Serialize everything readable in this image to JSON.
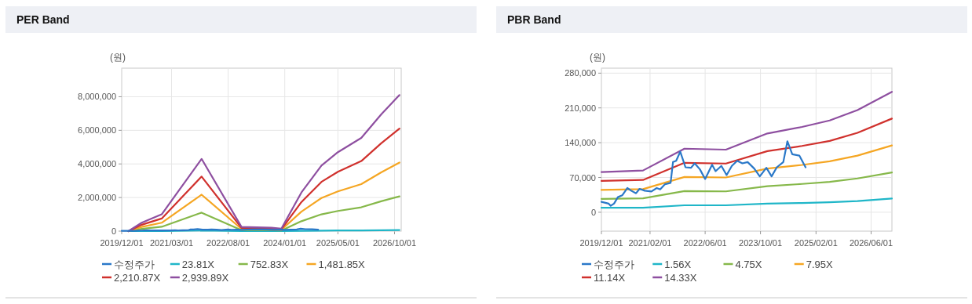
{
  "chart_data": [
    {
      "type": "line",
      "title": "PER Band",
      "ylabel": "(원)",
      "x": [
        "2020-02-01",
        "2020-06-01",
        "2020-12-01",
        "2021-12-01",
        "2022-12-01",
        "2023-09-01",
        "2023-12-01",
        "2024-06-01",
        "2024-12-01",
        "2025-05-01",
        "2025-12-01",
        "2026-06-01",
        "2026-11-15"
      ],
      "series": [
        {
          "name": "수정주가",
          "color": "#2a78c8",
          "x": [
            "2019-12-01",
            "2020-02-03",
            "2020-02-21",
            "2020-03-21",
            "2020-04-24",
            "2020-06-01",
            "2020-07-16",
            "2020-08-19",
            "2020-10-01",
            "2020-11-01",
            "2020-12-16",
            "2021-02-13",
            "2021-04-01",
            "2021-05-01",
            "2021-06-13",
            "2021-08-01",
            "2021-08-22",
            "2021-09-19",
            "2021-10-25",
            "2021-12-10",
            "2022-01-28",
            "2022-03-01",
            "2022-04-16",
            "2022-06-01",
            "2022-08-01",
            "2022-09-01",
            "2022-10-22",
            "2022-12-07",
            "2023-01-22",
            "2023-03-10",
            "2023-04-25",
            "2023-06-10",
            "2023-08-07",
            "2023-09-25",
            "2023-11-22",
            "2024-01-07",
            "2024-02-22",
            "2024-04-19",
            "2024-05-25",
            "2024-07-07",
            "2024-09-07",
            "2024-11-01"
          ],
          "values": [
            20900,
            17300,
            13000,
            17300,
            30400,
            34000,
            48700,
            43400,
            38200,
            47100,
            43400,
            41900,
            48700,
            46100,
            56500,
            59100,
            101000,
            103600,
            122000,
            90500,
            89500,
            98400,
            86400,
            67000,
            95800,
            82700,
            93200,
            74800,
            93200,
            103600,
            98400,
            101000,
            88000,
            72200,
            89500,
            72200,
            90500,
            101000,
            142900,
            116700,
            114100,
            90500
          ]
        },
        {
          "name": "23.81X",
          "color": "#1fb6c8",
          "values": [
            0,
            4000,
            8000,
            35000,
            2000,
            1600,
            1200,
            19000,
            32000,
            38000,
            45000,
            56000,
            65000
          ]
        },
        {
          "name": "752.83X",
          "color": "#86b84a",
          "values": [
            0,
            130000,
            260000,
            1100000,
            60000,
            50000,
            40000,
            590000,
            1000000,
            1200000,
            1420000,
            1780000,
            2070000
          ]
        },
        {
          "name": "1,481.85X",
          "color": "#f5a623",
          "values": [
            0,
            250000,
            500000,
            2170000,
            130000,
            100000,
            80000,
            1160000,
            1970000,
            2370000,
            2800000,
            3500000,
            4080000
          ]
        },
        {
          "name": "2,210.87X",
          "color": "#d0312d",
          "values": [
            0,
            380000,
            750000,
            3250000,
            190000,
            150000,
            110000,
            1730000,
            2930000,
            3530000,
            4170000,
            5230000,
            6100000
          ]
        },
        {
          "name": "2,939.89X",
          "color": "#8e4fa0",
          "values": [
            0,
            500000,
            1000000,
            4300000,
            250000,
            200000,
            150000,
            2300000,
            3900000,
            4700000,
            5550000,
            6950000,
            8100000
          ]
        }
      ],
      "xlim": [
        "2019-12-01",
        "2026-12-01"
      ],
      "xticks": [
        {
          "value": "2019-12-01",
          "label": "2019/12/01"
        },
        {
          "value": "2021-03-01",
          "label": "2021/03/01"
        },
        {
          "value": "2022-08-01",
          "label": "2022/08/01"
        },
        {
          "value": "2024-01-01",
          "label": "2024/01/01"
        },
        {
          "value": "2025-05-01",
          "label": "2025/05/01"
        },
        {
          "value": "2026-10-01",
          "label": "2026/10/01"
        }
      ],
      "ylim": [
        0,
        9700000
      ],
      "yticks": [
        0,
        {
          "value": 2000000,
          "label": "2,000,000"
        },
        {
          "value": 4000000,
          "label": "4,000,000"
        },
        {
          "value": 6000000,
          "label": "6,000,000"
        },
        {
          "value": 8000000,
          "label": "8,000,000"
        }
      ],
      "grid": true,
      "legend": "bottom"
    },
    {
      "type": "line",
      "title": "PBR Band",
      "ylabel": "(원)",
      "x": [
        "2019-12-01",
        "2020-12-01",
        "2021-12-01",
        "2022-12-01",
        "2023-12-01",
        "2024-10-01",
        "2025-06-01",
        "2026-02-01",
        "2026-12-01"
      ],
      "series": [
        {
          "name": "수정주가",
          "color": "#2a78c8",
          "x": [
            "2019-12-01",
            "2020-02-03",
            "2020-02-21",
            "2020-03-21",
            "2020-04-24",
            "2020-06-01",
            "2020-07-16",
            "2020-08-19",
            "2020-10-01",
            "2020-11-01",
            "2020-12-16",
            "2021-02-13",
            "2021-04-01",
            "2021-05-01",
            "2021-06-13",
            "2021-08-01",
            "2021-08-22",
            "2021-09-19",
            "2021-10-25",
            "2021-12-10",
            "2022-01-28",
            "2022-03-01",
            "2022-04-16",
            "2022-06-01",
            "2022-08-01",
            "2022-09-01",
            "2022-10-22",
            "2022-12-07",
            "2023-01-22",
            "2023-03-10",
            "2023-04-25",
            "2023-06-10",
            "2023-08-07",
            "2023-09-25",
            "2023-11-22",
            "2024-01-07",
            "2024-02-22",
            "2024-04-19",
            "2024-05-25",
            "2024-07-07",
            "2024-09-07",
            "2024-11-01"
          ],
          "values": [
            20900,
            17300,
            13000,
            17300,
            30400,
            34000,
            48700,
            43400,
            38200,
            47100,
            43400,
            41900,
            48700,
            46100,
            56500,
            59100,
            101000,
            103600,
            122000,
            90500,
            89500,
            98400,
            86400,
            67000,
            95800,
            82700,
            93200,
            74800,
            93200,
            103600,
            98400,
            101000,
            88000,
            72200,
            89500,
            72200,
            90500,
            101000,
            142900,
            116700,
            114100,
            90500
          ]
        },
        {
          "name": "1.56X",
          "color": "#1fb6c8",
          "values": [
            9000,
            9000,
            14000,
            14000,
            17300,
            18700,
            20000,
            22500,
            27500
          ]
        },
        {
          "name": "4.75X",
          "color": "#86b84a",
          "values": [
            27000,
            28000,
            42500,
            42000,
            52500,
            57000,
            61200,
            68000,
            80000
          ]
        },
        {
          "name": "7.95X",
          "color": "#f5a623",
          "values": [
            45000,
            46500,
            71000,
            70000,
            88000,
            95300,
            102600,
            114000,
            134500
          ]
        },
        {
          "name": "11.14X",
          "color": "#d0312d",
          "values": [
            63000,
            65000,
            99500,
            98000,
            123000,
            133500,
            143500,
            160000,
            188500
          ]
        },
        {
          "name": "14.33X",
          "color": "#8e4fa0",
          "values": [
            81000,
            84000,
            128000,
            126000,
            158600,
            171700,
            184800,
            205700,
            242300
          ]
        }
      ],
      "xlim": [
        "2019-12-01",
        "2026-12-01"
      ],
      "xticks": [
        {
          "value": "2019-12-01",
          "label": "2019/12/01"
        },
        {
          "value": "2021-02-01",
          "label": "2021/02/01"
        },
        {
          "value": "2022-06-01",
          "label": "2022/06/01"
        },
        {
          "value": "2023-10-01",
          "label": "2023/10/01"
        },
        {
          "value": "2025-02-01",
          "label": "2025/02/01"
        },
        {
          "value": "2026-06-01",
          "label": "2026/06/01"
        }
      ],
      "ylim": [
        -38000,
        290000
      ],
      "yticks": [
        0,
        {
          "value": 70000,
          "label": "70,000"
        },
        {
          "value": 140000,
          "label": "140,000"
        },
        {
          "value": 210000,
          "label": "210,000"
        },
        {
          "value": 280000,
          "label": "280,000"
        }
      ],
      "grid": true,
      "legend": "bottom"
    }
  ]
}
